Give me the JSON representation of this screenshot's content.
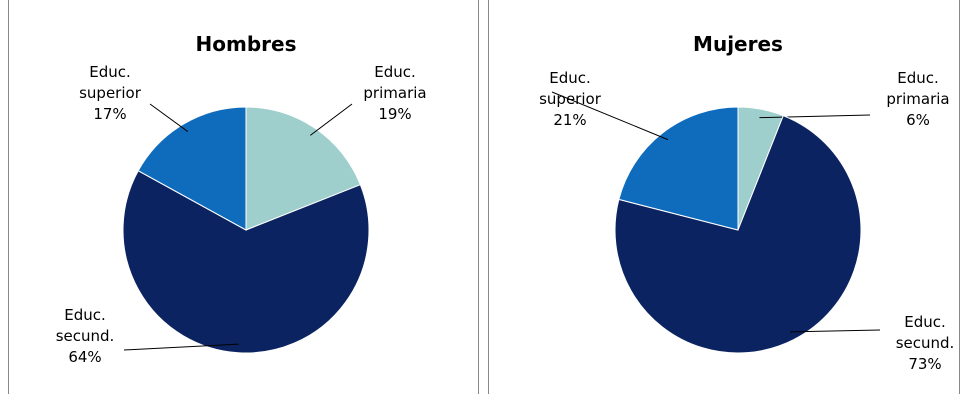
{
  "chart_data": [
    {
      "type": "pie",
      "title": "Hombres",
      "categories": [
        "Educ. primaria",
        "Educ. secund.",
        "Educ. superior"
      ],
      "values": [
        19,
        64,
        17
      ],
      "value_labels": [
        "19%",
        "64%",
        "17%"
      ],
      "colors": [
        "#9ecfcc",
        "#0b2461",
        "#0f6cbd"
      ]
    },
    {
      "type": "pie",
      "title": "Mujeres",
      "categories": [
        "Educ. primaria",
        "Educ. secund.",
        "Educ. superior"
      ],
      "values": [
        6,
        73,
        21
      ],
      "value_labels": [
        "6%",
        "73%",
        "21%"
      ],
      "colors": [
        "#9ecfcc",
        "#0b2461",
        "#0f6cbd"
      ]
    }
  ]
}
